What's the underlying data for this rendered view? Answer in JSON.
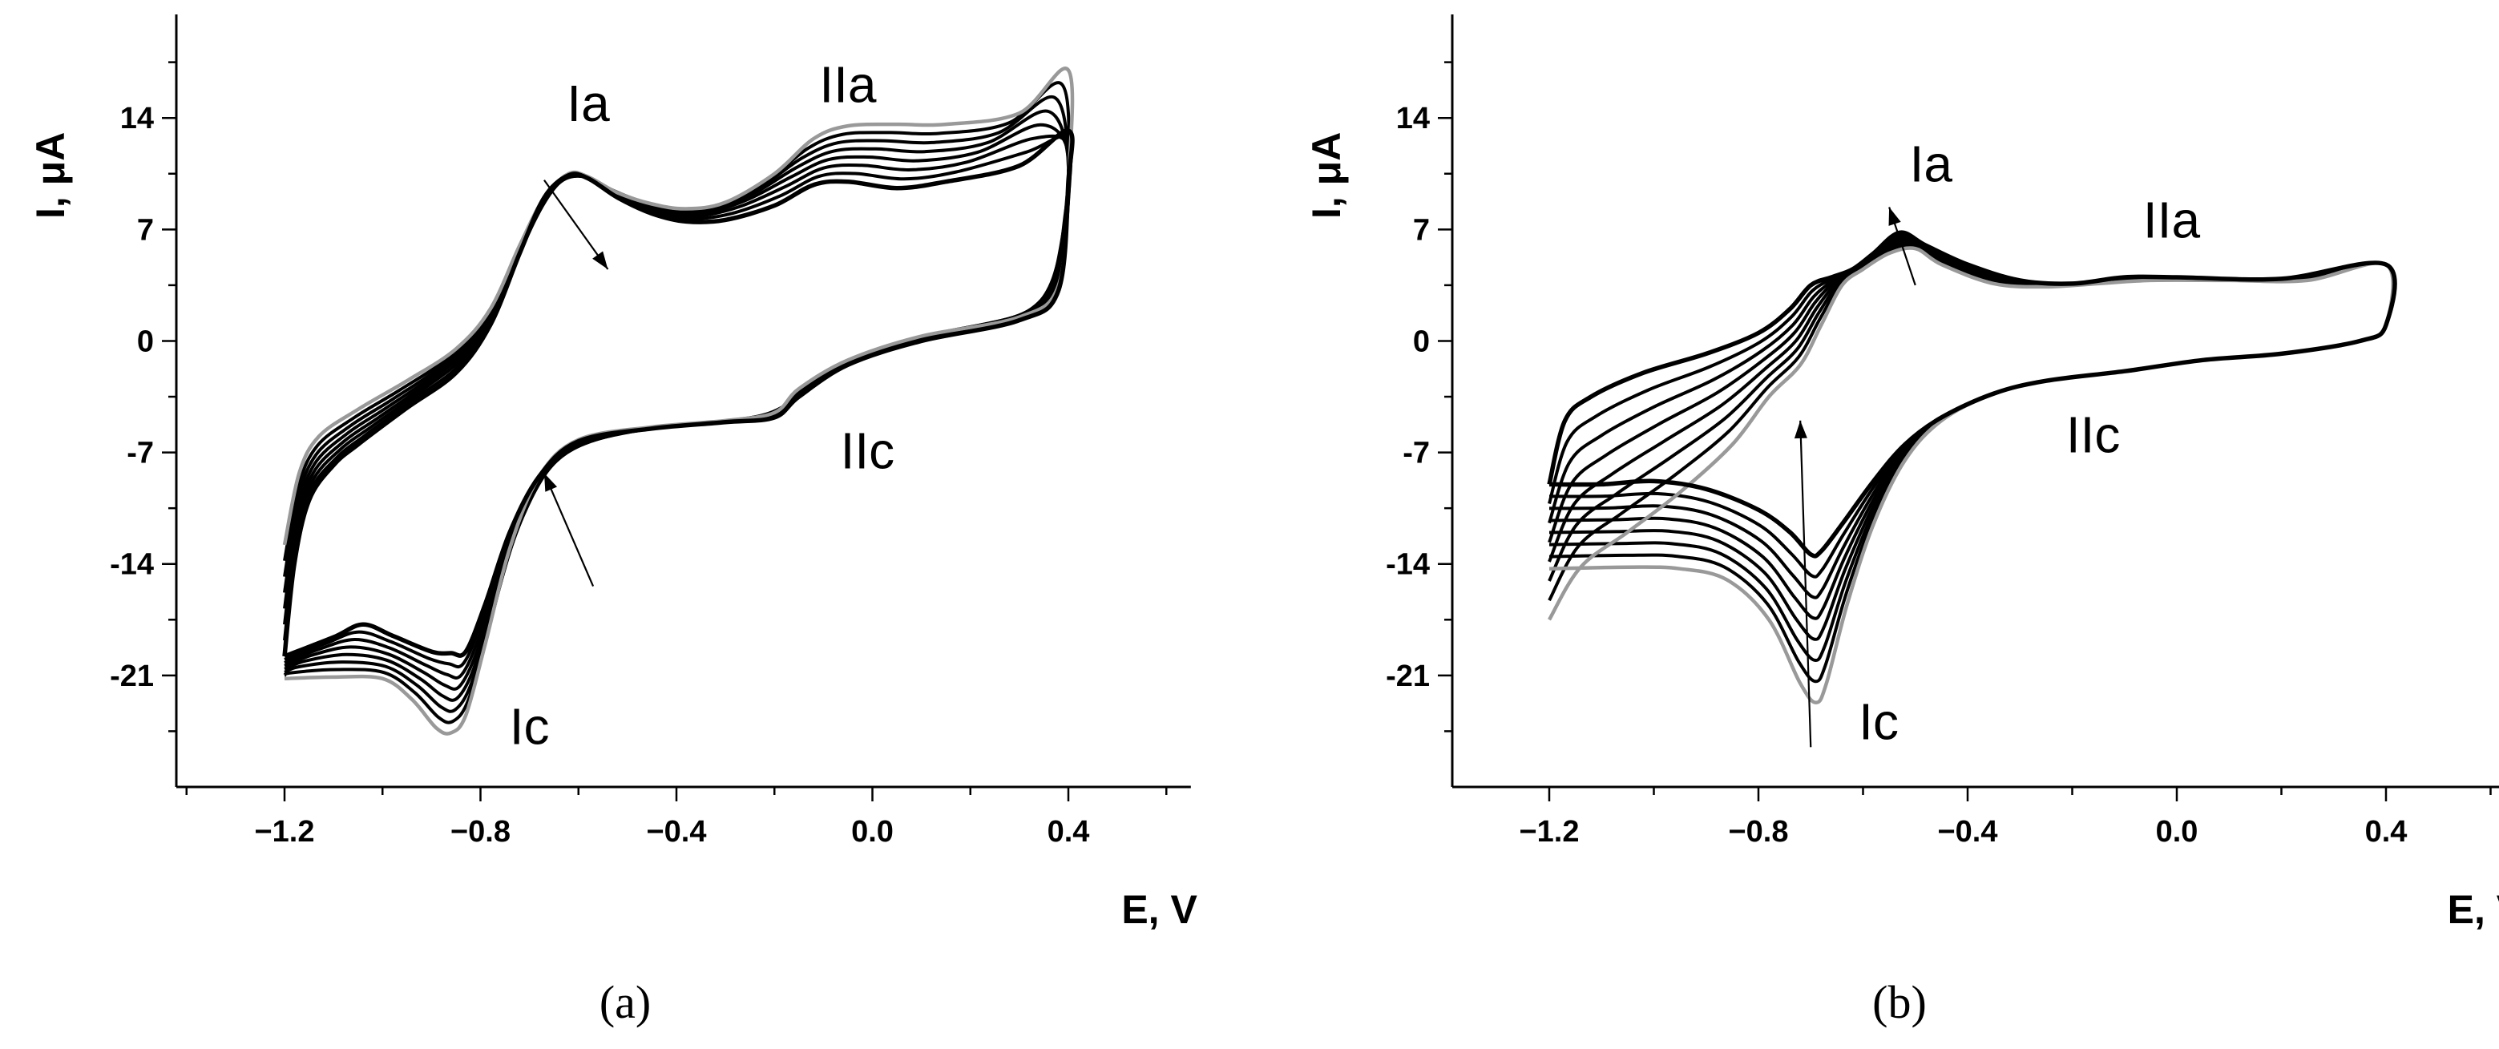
{
  "chart_data": [
    {
      "type": "line",
      "panel": "a",
      "panel_label": "(a)",
      "xlabel": "E, V",
      "ylabel": "I, μA",
      "xlim": [
        -1.45,
        0.65
      ],
      "ylim": [
        -28,
        20.5
      ],
      "x_ticks": [
        -1.2,
        -0.8,
        -0.4,
        0.0,
        0.4
      ],
      "x_tick_labels": [
        "−1.2",
        "−0.8",
        "−0.4",
        "0.0",
        "0.4"
      ],
      "y_ticks": [
        14,
        7,
        0,
        -7,
        -14,
        -21
      ],
      "y_tick_labels": [
        "14",
        "7",
        "0",
        "-7",
        "-14",
        "-21"
      ],
      "grid": false,
      "legend": "none",
      "peak_labels": [
        {
          "text": "Ia",
          "x": -0.58,
          "y": 13.8
        },
        {
          "text": "IIa",
          "x": -0.05,
          "y": 15
        },
        {
          "text": "IIc",
          "x": -0.01,
          "y": -8
        },
        {
          "text": "Ic",
          "x": -0.7,
          "y": -25.3
        }
      ],
      "arrows": [
        {
          "from": [
            -0.67,
            10.1
          ],
          "to": [
            -0.54,
            4.5
          ]
        },
        {
          "from": [
            -0.57,
            -15.4
          ],
          "to": [
            -0.67,
            -8.3
          ]
        }
      ],
      "series": [
        {
          "role": "first cycle",
          "color": "#999999",
          "width": 4.5,
          "points": [
            [
              -1.2,
              -12.8
            ],
            [
              -1.17,
              -8.3
            ],
            [
              -1.13,
              -6.0
            ],
            [
              -1.05,
              -4.3
            ],
            [
              -0.95,
              -2.5
            ],
            [
              -0.85,
              -0.5
            ],
            [
              -0.78,
              2.0
            ],
            [
              -0.72,
              6.0
            ],
            [
              -0.67,
              9.0
            ],
            [
              -0.62,
              10.5
            ],
            [
              -0.58,
              10.3
            ],
            [
              -0.52,
              9.3
            ],
            [
              -0.45,
              8.6
            ],
            [
              -0.38,
              8.3
            ],
            [
              -0.3,
              8.7
            ],
            [
              -0.2,
              10.5
            ],
            [
              -0.12,
              12.7
            ],
            [
              -0.05,
              13.5
            ],
            [
              0.05,
              13.6
            ],
            [
              0.15,
              13.6
            ],
            [
              0.3,
              14.3
            ],
            [
              0.4,
              17.0
            ],
            [
              0.4,
              10.0
            ],
            [
              0.38,
              3.5
            ],
            [
              0.3,
              1.5
            ],
            [
              0.1,
              0.3
            ],
            [
              -0.05,
              -1.2
            ],
            [
              -0.15,
              -3.0
            ],
            [
              -0.2,
              -4.5
            ],
            [
              -0.3,
              -5.0
            ],
            [
              -0.45,
              -5.4
            ],
            [
              -0.6,
              -6.2
            ],
            [
              -0.68,
              -8.5
            ],
            [
              -0.74,
              -13.0
            ],
            [
              -0.79,
              -19.0
            ],
            [
              -0.83,
              -23.5
            ],
            [
              -0.86,
              -24.6
            ],
            [
              -0.89,
              -24.3
            ],
            [
              -0.94,
              -22.5
            ],
            [
              -1.0,
              -21.2
            ],
            [
              -1.1,
              -21.1
            ],
            [
              -1.2,
              -21.2
            ]
          ]
        },
        {
          "role": "last cycle",
          "color": "#000000",
          "width": 4.5,
          "points": [
            [
              -1.2,
              -19.8
            ],
            [
              -1.18,
              -14.0
            ],
            [
              -1.15,
              -10.0
            ],
            [
              -1.1,
              -7.8
            ],
            [
              -1.05,
              -6.5
            ],
            [
              -0.95,
              -4.2
            ],
            [
              -0.85,
              -2.0
            ],
            [
              -0.78,
              1.0
            ],
            [
              -0.72,
              5.5
            ],
            [
              -0.67,
              9.0
            ],
            [
              -0.62,
              10.4
            ],
            [
              -0.58,
              10.2
            ],
            [
              -0.52,
              9.0
            ],
            [
              -0.45,
              8.0
            ],
            [
              -0.38,
              7.5
            ],
            [
              -0.3,
              7.6
            ],
            [
              -0.2,
              8.5
            ],
            [
              -0.12,
              9.8
            ],
            [
              -0.05,
              10.0
            ],
            [
              0.05,
              9.6
            ],
            [
              0.15,
              10.0
            ],
            [
              0.3,
              11.0
            ],
            [
              0.4,
              13.2
            ],
            [
              0.4,
              10.0
            ],
            [
              0.38,
              3.2
            ],
            [
              0.3,
              1.3
            ],
            [
              0.1,
              0.0
            ],
            [
              -0.05,
              -1.5
            ],
            [
              -0.15,
              -3.5
            ],
            [
              -0.2,
              -4.8
            ],
            [
              -0.3,
              -5.1
            ],
            [
              -0.45,
              -5.5
            ],
            [
              -0.6,
              -6.3
            ],
            [
              -0.68,
              -8.5
            ],
            [
              -0.74,
              -12.0
            ],
            [
              -0.79,
              -16.5
            ],
            [
              -0.83,
              -19.5
            ],
            [
              -0.86,
              -19.6
            ],
            [
              -0.9,
              -19.5
            ],
            [
              -0.98,
              -18.5
            ],
            [
              -1.04,
              -17.8
            ],
            [
              -1.1,
              -18.6
            ],
            [
              -1.2,
              -19.8
            ]
          ]
        }
      ],
      "intermediate_cycles": 6
    },
    {
      "type": "line",
      "panel": "b",
      "panel_label": "(b)",
      "xlabel": "E, V",
      "ylabel": "I, μA",
      "xlim": [
        -1.45,
        0.65
      ],
      "ylim": [
        -28,
        20.5
      ],
      "x_ticks": [
        -1.2,
        -0.8,
        -0.4,
        0.0,
        0.4
      ],
      "x_tick_labels": [
        "−1.2",
        "−0.8",
        "−0.4",
        "0.0",
        "0.4"
      ],
      "y_ticks": [
        14,
        7,
        0,
        -7,
        -14,
        -21
      ],
      "y_tick_labels": [
        "14",
        "7",
        "0",
        "-7",
        "-14",
        "-21"
      ],
      "grid": false,
      "legend": "none",
      "peak_labels": [
        {
          "text": "Ia",
          "x": -0.47,
          "y": 10
        },
        {
          "text": "IIa",
          "x": -0.01,
          "y": 6.5
        },
        {
          "text": "IIc",
          "x": -0.16,
          "y": -7
        },
        {
          "text": "Ic",
          "x": -0.57,
          "y": -25
        }
      ],
      "arrows": [
        {
          "from": [
            -0.5,
            3.5
          ],
          "to": [
            -0.55,
            8.4
          ]
        },
        {
          "from": [
            -0.7,
            -25.5
          ],
          "to": [
            -0.72,
            -5.0
          ]
        }
      ],
      "series": [
        {
          "role": "first cycle",
          "color": "#999999",
          "width": 4.5,
          "points": [
            [
              -1.2,
              -17.5
            ],
            [
              -1.14,
              -14.2
            ],
            [
              -1.05,
              -12.0
            ],
            [
              -0.95,
              -9.5
            ],
            [
              -0.85,
              -6.5
            ],
            [
              -0.78,
              -3.5
            ],
            [
              -0.72,
              -1.5
            ],
            [
              -0.68,
              1.0
            ],
            [
              -0.64,
              3.5
            ],
            [
              -0.6,
              4.5
            ],
            [
              -0.55,
              5.5
            ],
            [
              -0.5,
              5.8
            ],
            [
              -0.45,
              4.8
            ],
            [
              -0.35,
              3.6
            ],
            [
              -0.25,
              3.4
            ],
            [
              -0.15,
              3.6
            ],
            [
              -0.05,
              3.8
            ],
            [
              0.1,
              3.8
            ],
            [
              0.25,
              3.8
            ],
            [
              0.4,
              4.8
            ],
            [
              0.4,
              1.0
            ],
            [
              0.35,
              0.0
            ],
            [
              0.2,
              -0.8
            ],
            [
              0.05,
              -1.2
            ],
            [
              -0.1,
              -1.9
            ],
            [
              -0.25,
              -2.5
            ],
            [
              -0.35,
              -3.3
            ],
            [
              -0.45,
              -5.0
            ],
            [
              -0.52,
              -7.5
            ],
            [
              -0.58,
              -11.5
            ],
            [
              -0.63,
              -16.5
            ],
            [
              -0.67,
              -21.5
            ],
            [
              -0.69,
              -22.7
            ],
            [
              -0.72,
              -21.5
            ],
            [
              -0.78,
              -17.5
            ],
            [
              -0.86,
              -15.0
            ],
            [
              -0.95,
              -14.3
            ],
            [
              -1.05,
              -14.2
            ],
            [
              -1.2,
              -14.3
            ]
          ]
        },
        {
          "role": "last cycle",
          "color": "#000000",
          "width": 4.5,
          "points": [
            [
              -1.2,
              -9.0
            ],
            [
              -1.17,
              -5.0
            ],
            [
              -1.12,
              -3.5
            ],
            [
              -1.02,
              -2.0
            ],
            [
              -0.9,
              -0.8
            ],
            [
              -0.8,
              0.5
            ],
            [
              -0.74,
              2.0
            ],
            [
              -0.7,
              3.5
            ],
            [
              -0.66,
              4.0
            ],
            [
              -0.62,
              4.5
            ],
            [
              -0.58,
              5.5
            ],
            [
              -0.53,
              6.8
            ],
            [
              -0.48,
              6.0
            ],
            [
              -0.4,
              4.8
            ],
            [
              -0.3,
              3.8
            ],
            [
              -0.2,
              3.6
            ],
            [
              -0.1,
              4.0
            ],
            [
              0.0,
              4.0
            ],
            [
              0.2,
              3.9
            ],
            [
              0.4,
              4.8
            ],
            [
              0.4,
              1.0
            ],
            [
              0.35,
              0.0
            ],
            [
              0.2,
              -0.8
            ],
            [
              0.05,
              -1.2
            ],
            [
              -0.1,
              -1.9
            ],
            [
              -0.25,
              -2.5
            ],
            [
              -0.35,
              -3.3
            ],
            [
              -0.45,
              -4.8
            ],
            [
              -0.52,
              -6.5
            ],
            [
              -0.58,
              -8.8
            ],
            [
              -0.64,
              -11.5
            ],
            [
              -0.68,
              -13.2
            ],
            [
              -0.7,
              -13.4
            ],
            [
              -0.74,
              -12.0
            ],
            [
              -0.8,
              -10.6
            ],
            [
              -0.9,
              -9.3
            ],
            [
              -1.0,
              -8.8
            ],
            [
              -1.1,
              -9.0
            ],
            [
              -1.2,
              -9.0
            ]
          ]
        }
      ],
      "intermediate_cycles": 6
    }
  ]
}
